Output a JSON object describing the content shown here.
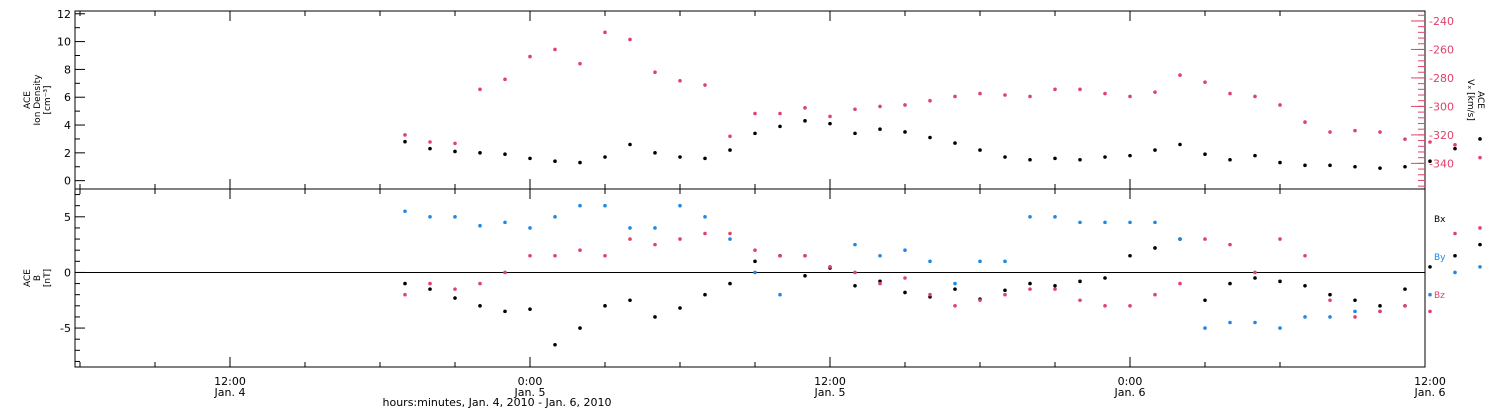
{
  "chart_data": [
    {
      "type": "scatter",
      "title": "",
      "ylabel_lines": [
        "ACE",
        "Ion Density",
        "[cm⁻³]"
      ],
      "ylabel_right_lines": [
        "ACE",
        "Vₓ [km/s]"
      ],
      "y_ticks_left": [
        "0",
        "2",
        "4",
        "6",
        "8",
        "10",
        "12"
      ],
      "y_ticks_right": [
        "-240",
        "-260",
        "-280",
        "-300",
        "-320",
        "-340"
      ],
      "ylim_left": [
        -0.6,
        12.2
      ],
      "ylim_right": [
        -358,
        -233
      ],
      "grid": false,
      "series": [
        {
          "color": "#000000",
          "axis": "left",
          "x": [
            7,
            8,
            9,
            10,
            11,
            12,
            13,
            14,
            15,
            16,
            17,
            18,
            19,
            20,
            21,
            22,
            23,
            24,
            25,
            26,
            27,
            28,
            29,
            30,
            31,
            32,
            33,
            34,
            35,
            36,
            37,
            38,
            39,
            40,
            41,
            42,
            43,
            44,
            45,
            46,
            47,
            48,
            49,
            50,
            51,
            52,
            53,
            54,
            55
          ],
          "y": [
            2.8,
            2.3,
            2.1,
            2.0,
            1.9,
            1.6,
            1.4,
            1.3,
            1.7,
            2.6,
            2.0,
            1.7,
            1.6,
            2.2,
            3.4,
            3.9,
            4.3,
            4.1,
            3.4,
            3.7,
            3.5,
            3.1,
            2.7,
            2.2,
            1.7,
            1.5,
            1.6,
            1.5,
            1.7,
            1.8,
            2.2,
            2.6,
            1.9,
            1.5,
            1.8,
            1.3,
            1.1,
            1.1,
            1.0,
            0.9,
            1.0,
            1.4,
            2.3,
            3.0,
            3.4,
            2.6,
            2.6,
            2.4,
            2.6
          ]
        },
        {
          "color": "#e0426a",
          "axis": "right",
          "x": [
            7,
            8,
            9,
            10,
            11,
            12,
            13,
            14,
            15,
            16,
            17,
            18,
            19,
            20,
            21,
            22,
            23,
            24,
            25,
            26,
            27,
            28,
            29,
            30,
            31,
            32,
            33,
            34,
            35,
            36,
            37,
            38,
            39,
            40,
            41,
            42,
            43,
            44,
            45,
            46,
            47,
            48,
            49,
            50,
            51,
            52,
            53,
            54,
            55
          ],
          "y": [
            -320,
            -325,
            -326,
            -288,
            -281,
            -265,
            -260,
            -270,
            -248,
            -253,
            -276,
            -282,
            -285,
            -321,
            -305,
            -305,
            -301,
            -307,
            -302,
            -300,
            -299,
            -296,
            -293,
            -291,
            -292,
            -293,
            -288,
            -288,
            -291,
            -293,
            -290,
            -278,
            -283,
            -291,
            -293,
            -299,
            -311,
            -318,
            -317,
            -318,
            -323,
            -325,
            -327,
            -336,
            -342,
            -330,
            -336,
            -339,
            -334
          ]
        }
      ]
    },
    {
      "type": "scatter",
      "title": "",
      "ylabel_lines": [
        "ACE",
        "B",
        "[nT]"
      ],
      "y_ticks": [
        "-5",
        "0",
        "5"
      ],
      "ylim": [
        -8.5,
        7.5
      ],
      "zero_line": true,
      "legend_position": "right",
      "grid": false,
      "x_tick_labels": [
        {
          "time": "12:00",
          "date": "Jan. 4"
        },
        {
          "time": "0:00",
          "date": "Jan. 5"
        },
        {
          "time": "12:00",
          "date": "Jan. 5"
        },
        {
          "time": "0:00",
          "date": "Jan. 6"
        },
        {
          "time": "12:00",
          "date": "Jan. 6"
        }
      ],
      "xlabel": "hours:minutes, Jan. 4, 2010 - Jan. 6, 2010",
      "series": [
        {
          "name": "Bx",
          "color": "#000000",
          "x": [
            7,
            8,
            9,
            10,
            11,
            12,
            13,
            14,
            15,
            16,
            17,
            18,
            19,
            20,
            21,
            22,
            23,
            24,
            25,
            26,
            27,
            28,
            29,
            30,
            31,
            32,
            33,
            34,
            35,
            36,
            37,
            38,
            39,
            40,
            41,
            42,
            43,
            44,
            45,
            46,
            47,
            48,
            49,
            50,
            51,
            52,
            53,
            54,
            55
          ],
          "y": [
            -1.0,
            -1.5,
            -2.3,
            -3.0,
            -3.5,
            -3.3,
            -6.5,
            -5.0,
            -3.0,
            -2.5,
            -4.0,
            -3.2,
            -2.0,
            -1.0,
            1.0,
            1.5,
            -0.3,
            0.4,
            -1.2,
            -0.8,
            -1.8,
            -2.2,
            -1.5,
            -2.4,
            -1.6,
            -1.0,
            -1.2,
            -0.8,
            -0.5,
            1.5,
            2.2,
            3.0,
            -2.5,
            -1.0,
            -0.5,
            -0.8,
            -1.2,
            -2.0,
            -2.5,
            -3.0,
            -1.5,
            0.5,
            1.5,
            2.5,
            1.5,
            3.0,
            2.0,
            0.8,
            1.0
          ]
        },
        {
          "name": "By",
          "color": "#1e88e5",
          "x": [
            7,
            8,
            9,
            10,
            11,
            12,
            13,
            14,
            15,
            16,
            17,
            18,
            19,
            20,
            21,
            22,
            23,
            24,
            25,
            26,
            27,
            28,
            29,
            30,
            31,
            32,
            33,
            34,
            35,
            36,
            37,
            38,
            39,
            40,
            41,
            42,
            43,
            44,
            45,
            46,
            47,
            48,
            49,
            50,
            51,
            52,
            53,
            54,
            55
          ],
          "y": [
            5.5,
            5.0,
            5.0,
            4.2,
            4.5,
            4.0,
            5.0,
            6.0,
            6.0,
            4.0,
            4.0,
            6.0,
            5.0,
            3.0,
            0.0,
            -2.0,
            1.5,
            0.5,
            2.5,
            1.5,
            2.0,
            1.0,
            -1.0,
            1.0,
            1.0,
            5.0,
            5.0,
            4.5,
            4.5,
            4.5,
            4.5,
            3.0,
            -5.0,
            -4.5,
            -4.5,
            -5.0,
            -4.0,
            -4.0,
            -3.5,
            -3.5,
            -3.0,
            -2.0,
            0.0,
            0.5,
            1.0,
            -1.0,
            0.0,
            1.0,
            -3.0
          ]
        },
        {
          "name": "Bz",
          "color": "#e0426a",
          "x": [
            7,
            8,
            9,
            10,
            11,
            12,
            13,
            14,
            15,
            16,
            17,
            18,
            19,
            20,
            21,
            22,
            23,
            24,
            25,
            26,
            27,
            28,
            29,
            30,
            31,
            32,
            33,
            34,
            35,
            36,
            37,
            38,
            39,
            40,
            41,
            42,
            43,
            44,
            45,
            46,
            47,
            48,
            49,
            50,
            51,
            52,
            53,
            54,
            55
          ],
          "y": [
            -2.0,
            -1.0,
            -1.5,
            -1.0,
            0.0,
            1.5,
            1.5,
            2.0,
            1.5,
            3.0,
            2.5,
            3.0,
            3.5,
            3.5,
            2.0,
            1.5,
            1.5,
            0.5,
            0.0,
            -1.0,
            -0.5,
            -2.0,
            -3.0,
            -2.5,
            -2.0,
            -1.5,
            -1.5,
            -2.5,
            -3.0,
            -3.0,
            -2.0,
            -1.0,
            3.0,
            2.5,
            0.0,
            3.0,
            1.5,
            -2.5,
            -4.0,
            -3.5,
            -3.0,
            -3.5,
            3.5,
            4.0,
            0.5,
            3.5,
            3.5,
            3.5,
            3.0
          ]
        }
      ]
    }
  ]
}
